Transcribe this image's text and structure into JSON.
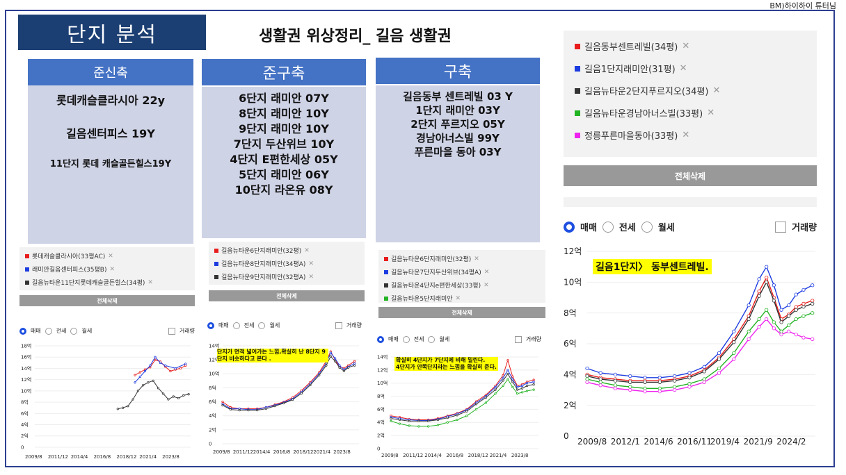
{
  "credit": "BM)하이하이 튜터님",
  "title": "단지 분석",
  "subtitle": "생활권 위상정리_ 길음 생활권",
  "colors": {
    "navy": "#1c3f73",
    "blue": "#4472c4",
    "lavender": "#cfd3e6",
    "red": "#e81c1c",
    "blue_series": "#1d3ce0",
    "black_series": "#333333",
    "green_series": "#22b322",
    "magenta_series": "#ee22ee",
    "highlight": "#ffff00"
  },
  "columns": [
    {
      "header": "준신축",
      "items": [
        "롯데캐슬클라시아 22y",
        "길음센터피스 19Y",
        "11단지 롯데 캐슬골든힐스19Y"
      ]
    },
    {
      "header": "준구축",
      "items": [
        "6단지 래미안 07Y",
        "8단지 래미안 10Y",
        "9단지 래미안 10Y",
        "7단지 두산위브 10Y",
        "4단지 E편한세상 05Y",
        "5단지 래미안 06Y",
        "10단지 라온유 08Y"
      ]
    },
    {
      "header": "구축",
      "items": [
        "길음동부 센트레빌 03 Y",
        "1단지 래미안 03Y",
        "2단지 푸르지오 05Y",
        "경남아너스빌 99Y",
        "푸른마을 동아 03Y"
      ]
    }
  ],
  "legends": [
    {
      "items": [
        {
          "label": "롯데캐슬클라시아(33평AC)",
          "color": "red"
        },
        {
          "label": "래미안길음센터피스(35평B)",
          "color": "blue"
        },
        {
          "label": "길음뉴타운11단지롯데캐슬골든힐스(34평)",
          "color": "black"
        }
      ]
    },
    {
      "items": [
        {
          "label": "길음뉴타운6단지래미안(32평)",
          "color": "red"
        },
        {
          "label": "길음뉴타운8단지래미안(34평A)",
          "color": "blue"
        },
        {
          "label": "길음뉴타운9단지래미안(32평A)",
          "color": "black"
        }
      ]
    },
    {
      "items": [
        {
          "label": "길음뉴타운6단지래미안(32평)",
          "color": "red"
        },
        {
          "label": "길음뉴타운7단지두산위브(34평A)",
          "color": "blue"
        },
        {
          "label": "길음뉴타운4단지e편한세상(33평)",
          "color": "black"
        },
        {
          "label": "길음뉴타운5단지래미안",
          "color": "green"
        }
      ]
    },
    {
      "items": [
        {
          "label": "길음동부센트레빌(34평)",
          "color": "red"
        },
        {
          "label": "길음1단지래미안(31평)",
          "color": "blue"
        },
        {
          "label": "길음뉴타운2단지푸르지오(34평)",
          "color": "black"
        },
        {
          "label": "길음뉴타운경남아너스빌(33평)",
          "color": "green"
        },
        {
          "label": "정릉푸른마을동아(33평)",
          "color": "magenta"
        }
      ]
    }
  ],
  "delete_all": "전체삭제",
  "close_mark": "✕",
  "radio": {
    "sale": "매매",
    "jeonse": "전세",
    "monthly": "월세",
    "volume": "거래량"
  },
  "notes": {
    "chart2": "단지가 면적 넓어가는 느낌,확실히 난 8단지 9단지 비슷하다고 본다 .",
    "chart3_line1": "확실히 4단지가 7단지에 비해 밀린다.",
    "chart3_line2": "4단지가 안쪽단지라는 느낌을 확실히 준다.",
    "chart4": "길음1단지〉 동부센트레빌."
  },
  "chart_data": [
    {
      "type": "line",
      "xticks": [
        "2009/8",
        "2011/12",
        "2014/4",
        "2016/8",
        "2018/12",
        "2021/4",
        "2023/8"
      ],
      "yticks": [
        "0",
        "2억",
        "4억",
        "6억",
        "8억",
        "10억",
        "12억",
        "14억",
        "16억",
        "18억"
      ],
      "ylim": [
        0,
        18
      ],
      "series": [
        {
          "color": "red",
          "x": [
            2019.5,
            2020.0,
            2020.5,
            2021.0,
            2021.5,
            2022.0,
            2022.5,
            2023.0,
            2023.5,
            2024.0,
            2024.5
          ],
          "y": [
            12.8,
            13.3,
            13.8,
            14.2,
            15.5,
            15.2,
            14.3,
            13.5,
            13.8,
            14.0,
            14.5
          ]
        },
        {
          "color": "blue",
          "x": [
            2019.5,
            2020.0,
            2020.5,
            2021.0,
            2021.5,
            2022.0,
            2022.5,
            2023.5,
            2024.5
          ],
          "y": [
            11.5,
            12.5,
            13.5,
            14.5,
            16.0,
            15.0,
            14.5,
            14.0,
            14.8
          ]
        },
        {
          "color": "black",
          "x": [
            2017.8,
            2018.3,
            2018.8,
            2019.3,
            2019.8,
            2020.3,
            2020.8,
            2021.3,
            2021.8,
            2022.3,
            2022.8,
            2023.3,
            2023.8,
            2024.3,
            2024.8
          ],
          "y": [
            6.8,
            7.0,
            7.3,
            8.5,
            10.0,
            11.0,
            11.5,
            11.8,
            10.5,
            9.5,
            8.5,
            9.0,
            8.7,
            9.2,
            9.4
          ]
        }
      ]
    },
    {
      "type": "line",
      "xticks": [
        "2009/8",
        "2011/12",
        "2014/4",
        "2016/8",
        "2018/12",
        "2021/4",
        "2023/8"
      ],
      "yticks": [
        "0",
        "2억",
        "4억",
        "6억",
        "8억",
        "10억",
        "12억",
        "14억"
      ],
      "ylim": [
        0,
        14
      ],
      "series": [
        {
          "color": "red",
          "x": [
            2009.6,
            2010.5,
            2011.5,
            2012.5,
            2013.5,
            2014.5,
            2015.5,
            2016.5,
            2017.5,
            2018.5,
            2019.5,
            2020.5,
            2021.3,
            2021.8,
            2022.3,
            2022.8,
            2023.3,
            2023.8,
            2024.5
          ],
          "y": [
            6.0,
            5.2,
            5.0,
            5.0,
            5.0,
            5.2,
            5.6,
            6.0,
            6.6,
            7.6,
            8.8,
            10.2,
            11.8,
            13.2,
            12.0,
            11.0,
            10.8,
            11.2,
            11.8
          ]
        },
        {
          "color": "blue",
          "x": [
            2009.6,
            2010.5,
            2011.5,
            2012.5,
            2013.5,
            2014.5,
            2015.5,
            2016.5,
            2017.5,
            2018.5,
            2019.5,
            2020.5,
            2021.3,
            2021.8,
            2022.3,
            2022.8,
            2023.3,
            2023.8,
            2024.5
          ],
          "y": [
            5.7,
            5.0,
            5.0,
            4.9,
            4.9,
            5.2,
            5.5,
            5.9,
            6.4,
            7.4,
            8.6,
            10.0,
            11.5,
            13.0,
            12.2,
            11.2,
            10.6,
            11.0,
            11.5
          ]
        },
        {
          "color": "black",
          "x": [
            2009.6,
            2010.5,
            2011.5,
            2012.5,
            2013.5,
            2014.5,
            2015.5,
            2016.5,
            2017.5,
            2018.5,
            2019.5,
            2020.5,
            2021.3,
            2021.8,
            2022.3,
            2022.8,
            2023.3,
            2023.8,
            2024.5
          ],
          "y": [
            5.5,
            4.9,
            4.8,
            4.8,
            4.8,
            5.0,
            5.4,
            5.8,
            6.3,
            7.2,
            8.4,
            9.8,
            11.2,
            12.5,
            11.8,
            10.9,
            10.4,
            10.9,
            11.2
          ]
        }
      ]
    },
    {
      "type": "line",
      "xticks": [
        "2009/8",
        "2011/12",
        "2014/4",
        "2016/8",
        "2018/12",
        "2021/4",
        "2023/8"
      ],
      "yticks": [
        "0",
        "2억",
        "4억",
        "6억",
        "8억",
        "10억",
        "12억",
        "14억"
      ],
      "ylim": [
        0,
        14
      ],
      "series": [
        {
          "color": "red",
          "x": [
            2009.6,
            2010.5,
            2011.5,
            2012.5,
            2013.5,
            2014.5,
            2015.5,
            2016.5,
            2017.5,
            2018.5,
            2019.5,
            2020.5,
            2021.3,
            2021.8,
            2022.3,
            2022.8,
            2023.3,
            2023.8,
            2024.5
          ],
          "y": [
            5.0,
            4.8,
            4.5,
            4.4,
            4.4,
            4.6,
            5.0,
            5.4,
            6.0,
            7.2,
            8.2,
            9.6,
            11.2,
            13.5,
            11.0,
            9.6,
            9.8,
            10.2,
            10.5
          ]
        },
        {
          "color": "blue",
          "x": [
            2009.6,
            2010.5,
            2011.5,
            2012.5,
            2013.5,
            2014.5,
            2015.5,
            2016.5,
            2017.5,
            2018.5,
            2019.5,
            2020.5,
            2021.3,
            2021.8,
            2022.3,
            2022.8,
            2023.3,
            2023.8,
            2024.5
          ],
          "y": [
            4.8,
            4.6,
            4.4,
            4.3,
            4.3,
            4.5,
            4.9,
            5.3,
            5.9,
            7.0,
            8.0,
            9.4,
            10.8,
            12.0,
            10.6,
            9.4,
            9.6,
            10.0,
            10.2
          ]
        },
        {
          "color": "black",
          "x": [
            2009.6,
            2010.5,
            2011.5,
            2012.5,
            2013.5,
            2014.5,
            2015.5,
            2016.5,
            2017.5,
            2018.5,
            2019.5,
            2020.5,
            2021.3,
            2021.8,
            2022.3,
            2022.8,
            2023.3,
            2023.8,
            2024.5
          ],
          "y": [
            4.6,
            4.4,
            4.2,
            4.2,
            4.2,
            4.4,
            4.7,
            5.1,
            5.7,
            6.8,
            7.8,
            9.0,
            10.4,
            11.4,
            10.2,
            9.0,
            9.2,
            9.6,
            9.8
          ]
        },
        {
          "color": "green",
          "x": [
            2009.6,
            2010.5,
            2011.5,
            2012.5,
            2013.5,
            2014.5,
            2015.5,
            2016.5,
            2017.5,
            2018.5,
            2019.5,
            2020.5,
            2021.3,
            2021.8,
            2022.3,
            2022.8,
            2023.3,
            2023.8,
            2024.5
          ],
          "y": [
            4.2,
            3.8,
            3.5,
            3.4,
            3.4,
            3.6,
            4.0,
            4.4,
            5.0,
            6.0,
            7.0,
            8.4,
            9.6,
            10.6,
            9.4,
            8.4,
            8.6,
            8.8,
            9.0
          ]
        }
      ]
    },
    {
      "type": "line",
      "xticks": [
        "2009/8",
        "2012/1",
        "2014/6",
        "2016/11",
        "2019/4",
        "2021/9",
        "2024/2"
      ],
      "yticks": [
        "0",
        "2억",
        "4억",
        "6억",
        "8억",
        "10억",
        "12억"
      ],
      "ylim": [
        0,
        12
      ],
      "series": [
        {
          "color": "blue",
          "x": [
            2009.6,
            2010.5,
            2011.5,
            2012.5,
            2013.5,
            2014.5,
            2015.5,
            2016.5,
            2017.5,
            2018.5,
            2019.5,
            2020.5,
            2021.2,
            2021.7,
            2022.2,
            2022.7,
            2023.2,
            2023.7,
            2024.2,
            2024.8
          ],
          "y": [
            4.4,
            4.1,
            4.0,
            3.9,
            3.8,
            3.8,
            3.9,
            4.1,
            4.5,
            5.4,
            6.8,
            8.5,
            10.2,
            11.0,
            9.8,
            8.2,
            8.5,
            9.2,
            9.5,
            9.8
          ]
        },
        {
          "color": "red",
          "x": [
            2009.6,
            2010.5,
            2011.5,
            2012.5,
            2013.5,
            2014.5,
            2015.5,
            2016.5,
            2017.5,
            2018.5,
            2019.5,
            2020.5,
            2021.2,
            2021.7,
            2022.2,
            2022.7,
            2023.2,
            2023.7,
            2024.2,
            2024.8
          ],
          "y": [
            4.0,
            3.8,
            3.7,
            3.6,
            3.6,
            3.6,
            3.7,
            3.9,
            4.3,
            5.1,
            6.3,
            7.8,
            9.4,
            10.3,
            9.0,
            7.6,
            7.9,
            8.4,
            8.6,
            8.8
          ]
        },
        {
          "color": "black",
          "x": [
            2009.6,
            2010.5,
            2011.5,
            2012.5,
            2013.5,
            2014.5,
            2015.5,
            2016.5,
            2017.5,
            2018.5,
            2019.5,
            2020.5,
            2021.2,
            2021.7,
            2022.2,
            2022.7,
            2023.2,
            2023.7,
            2024.2,
            2024.8
          ],
          "y": [
            3.9,
            3.7,
            3.6,
            3.5,
            3.5,
            3.5,
            3.6,
            3.8,
            4.2,
            5.0,
            6.1,
            7.6,
            9.1,
            10.0,
            8.8,
            7.4,
            7.8,
            8.2,
            8.4,
            8.6
          ]
        },
        {
          "color": "green",
          "x": [
            2009.6,
            2010.5,
            2011.5,
            2012.5,
            2013.5,
            2014.5,
            2015.5,
            2016.5,
            2017.5,
            2018.5,
            2019.5,
            2020.5,
            2021.2,
            2021.7,
            2022.2,
            2022.7,
            2023.2,
            2023.7,
            2024.2,
            2024.8
          ],
          "y": [
            3.7,
            3.5,
            3.3,
            3.2,
            3.1,
            3.1,
            3.2,
            3.4,
            3.7,
            4.4,
            5.4,
            6.8,
            7.6,
            8.2,
            7.4,
            6.8,
            7.2,
            7.6,
            7.8,
            8.0
          ]
        },
        {
          "color": "magenta",
          "x": [
            2009.6,
            2010.5,
            2011.5,
            2012.5,
            2013.5,
            2014.5,
            2015.5,
            2016.5,
            2017.5,
            2018.5,
            2019.5,
            2020.5,
            2021.2,
            2021.7,
            2022.2,
            2022.7,
            2023.2,
            2023.7,
            2024.2,
            2024.8
          ],
          "y": [
            3.5,
            3.3,
            3.1,
            3.0,
            2.9,
            2.9,
            3.0,
            3.2,
            3.5,
            4.1,
            5.0,
            6.3,
            7.1,
            7.6,
            7.0,
            6.6,
            6.8,
            6.6,
            6.4,
            6.3
          ]
        }
      ]
    }
  ]
}
